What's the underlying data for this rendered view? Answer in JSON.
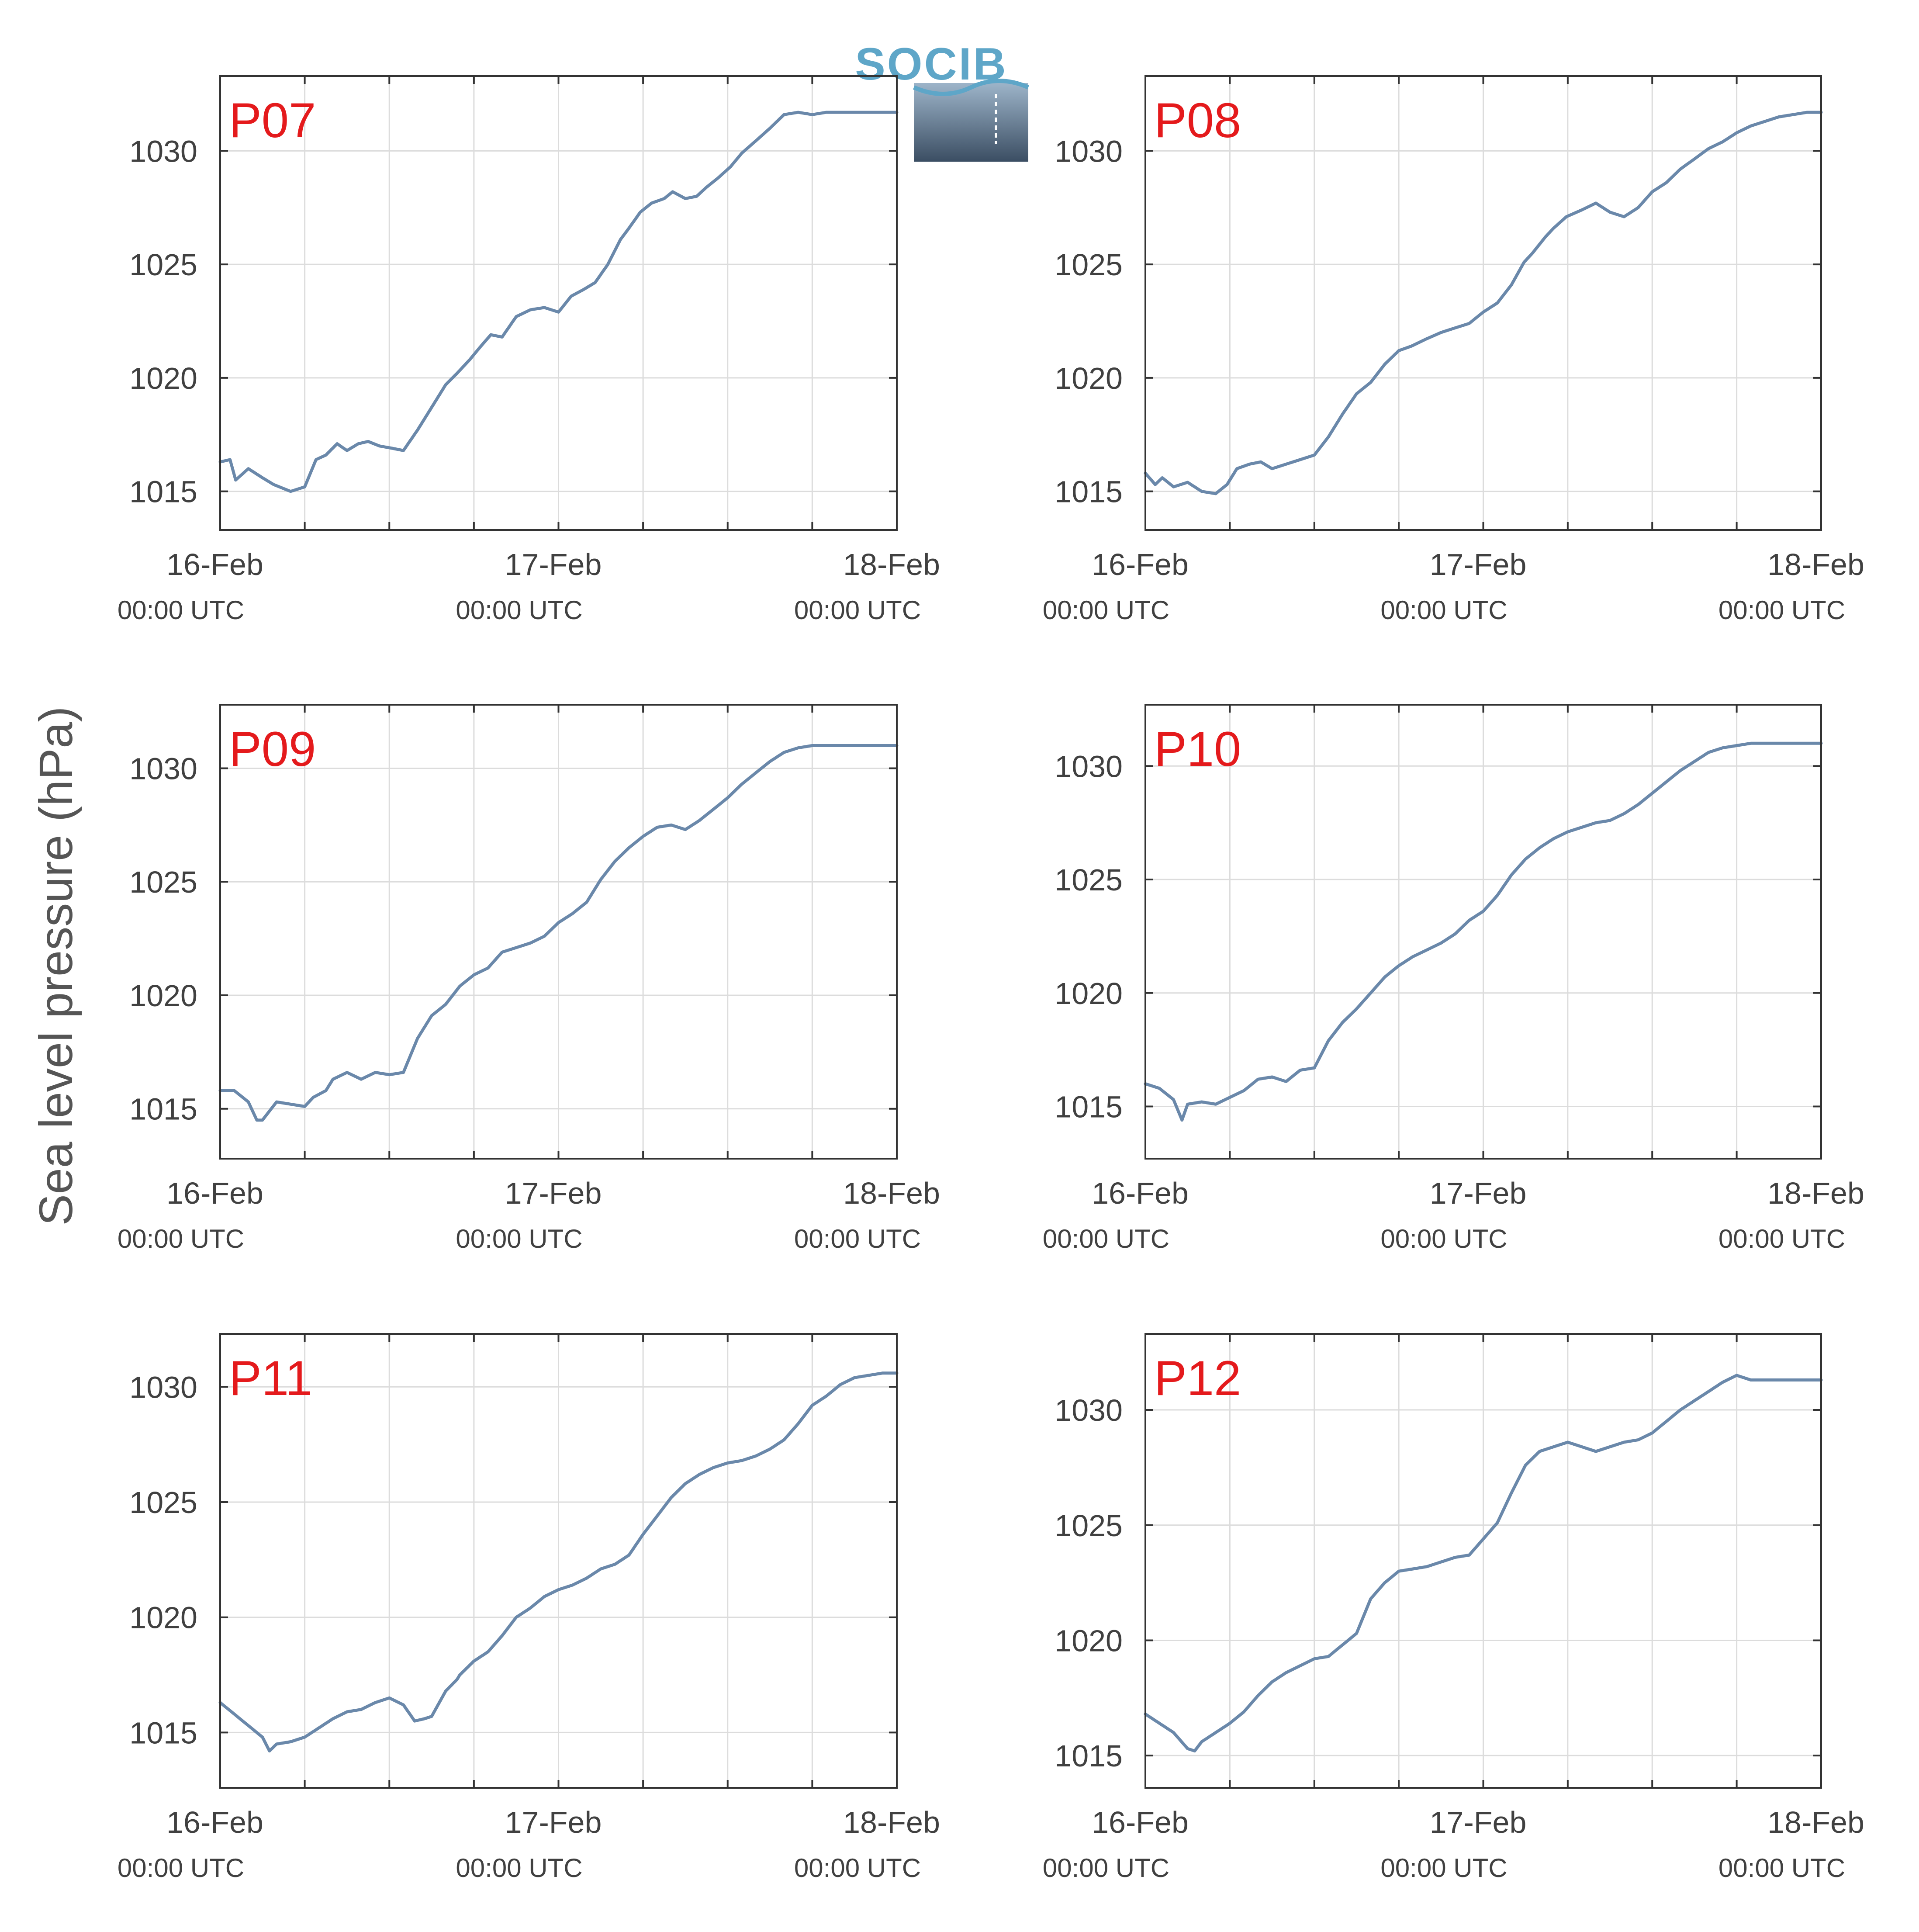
{
  "figure": {
    "ylabel": "Sea level pressure (hPa)",
    "series_color": "#6a88aa",
    "label_color": "#e41a1c",
    "logo": {
      "text": "SOCIB",
      "color": "#5ea6c8",
      "gradient_top": "#9db4c9",
      "gradient_bottom": "#3b4e63"
    }
  },
  "chart_data": [
    {
      "type": "line",
      "panel_label": "P07",
      "x_range_hours": [
        0,
        48
      ],
      "x_ticks": [
        {
          "date": "16-Feb",
          "time": "00:00 UTC"
        },
        {
          "date": "17-Feb",
          "time": "00:00 UTC"
        },
        {
          "date": "18-Feb",
          "time": "00:00 UTC"
        }
      ],
      "ylim": [
        1013.3,
        1033.3
      ],
      "yticks": [
        1015,
        1020,
        1025,
        1030
      ],
      "grid": true,
      "xlabel": "",
      "ylabel": "",
      "series": [
        {
          "x": [
            0,
            0.7,
            1.1,
            2,
            3,
            3.8,
            5,
            6,
            6.8,
            7.5,
            8.3,
            9,
            9.8,
            10.5,
            11.3,
            12.2,
            13,
            14,
            15.2,
            16,
            16.8,
            17.7,
            18.5,
            19.2,
            20,
            21,
            22,
            23,
            24,
            24.9,
            25.8,
            26.6,
            27.5,
            28.4,
            29,
            29.8,
            30.6,
            31.5,
            32.1,
            33,
            33.8,
            34.5,
            35.3,
            36.2,
            37,
            38.1,
            39,
            40,
            41,
            42,
            43,
            44,
            45,
            46,
            46.8,
            48
          ],
          "y": [
            1016.3,
            1016.4,
            1015.5,
            1016,
            1015.6,
            1015.3,
            1015,
            1015.2,
            1016.4,
            1016.6,
            1017.1,
            1016.8,
            1017.1,
            1017.2,
            1017,
            1016.9,
            1016.8,
            1017.7,
            1018.9,
            1019.7,
            1020.2,
            1020.8,
            1021.4,
            1021.9,
            1021.8,
            1022.7,
            1023,
            1023.1,
            1022.9,
            1023.6,
            1023.9,
            1024.2,
            1025,
            1026.1,
            1026.6,
            1027.3,
            1027.7,
            1027.9,
            1028.2,
            1027.9,
            1028,
            1028.4,
            1028.8,
            1029.3,
            1029.9,
            1030.5,
            1031,
            1031.6,
            1031.7,
            1031.6,
            1031.7,
            1031.7,
            1031.7,
            1031.7,
            1031.7,
            1031.7
          ]
        }
      ]
    },
    {
      "type": "line",
      "panel_label": "P08",
      "x_range_hours": [
        0,
        48
      ],
      "x_ticks": [
        {
          "date": "16-Feb",
          "time": "00:00 UTC"
        },
        {
          "date": "17-Feb",
          "time": "00:00 UTC"
        },
        {
          "date": "18-Feb",
          "time": "00:00 UTC"
        }
      ],
      "ylim": [
        1013.3,
        1033.3
      ],
      "yticks": [
        1015,
        1020,
        1025,
        1030
      ],
      "grid": true,
      "xlabel": "",
      "ylabel": "",
      "series": [
        {
          "x": [
            0,
            0.7,
            1.2,
            2,
            3,
            4,
            5,
            5.8,
            6.5,
            7.4,
            8.2,
            9,
            10,
            11,
            12,
            13,
            14,
            15,
            16,
            17,
            18,
            18.9,
            19.9,
            21,
            22,
            23,
            24,
            25,
            26,
            26.9,
            27.5,
            28.4,
            29,
            29.9,
            31,
            32,
            33,
            34,
            35,
            36,
            37,
            38,
            38.9,
            40,
            41,
            42,
            43,
            44,
            45,
            46,
            47,
            48
          ],
          "y": [
            1015.8,
            1015.3,
            1015.6,
            1015.2,
            1015.4,
            1015,
            1014.9,
            1015.3,
            1016,
            1016.2,
            1016.3,
            1016,
            1016.2,
            1016.4,
            1016.6,
            1017.4,
            1018.4,
            1019.3,
            1019.8,
            1020.6,
            1021.2,
            1021.4,
            1021.7,
            1022,
            1022.2,
            1022.4,
            1022.9,
            1023.3,
            1024.1,
            1025.1,
            1025.5,
            1026.2,
            1026.6,
            1027.1,
            1027.4,
            1027.7,
            1027.3,
            1027.1,
            1027.5,
            1028.2,
            1028.6,
            1029.2,
            1029.6,
            1030.1,
            1030.4,
            1030.8,
            1031.1,
            1031.3,
            1031.5,
            1031.6,
            1031.7,
            1031.7
          ]
        }
      ]
    },
    {
      "type": "line",
      "panel_label": "P09",
      "x_range_hours": [
        0,
        48
      ],
      "x_ticks": [
        {
          "date": "16-Feb",
          "time": "00:00 UTC"
        },
        {
          "date": "17-Feb",
          "time": "00:00 UTC"
        },
        {
          "date": "18-Feb",
          "time": "00:00 UTC"
        }
      ],
      "ylim": [
        1012.8,
        1032.8
      ],
      "yticks": [
        1015,
        1020,
        1025,
        1030
      ],
      "grid": true,
      "xlabel": "",
      "ylabel": "",
      "series": [
        {
          "x": [
            0,
            1,
            2,
            2.6,
            3,
            4,
            5,
            6,
            6.6,
            7.5,
            8,
            9,
            10,
            11,
            12,
            13,
            14,
            15,
            16,
            17,
            18,
            19,
            20,
            21,
            22,
            23,
            24,
            25,
            26,
            27,
            28,
            29,
            30,
            31,
            32,
            33,
            34,
            35,
            36,
            37,
            38,
            39,
            40,
            41,
            42,
            43,
            44,
            45,
            46,
            47,
            48
          ],
          "y": [
            1015.8,
            1015.8,
            1015.3,
            1014.5,
            1014.5,
            1015.3,
            1015.2,
            1015.1,
            1015.5,
            1015.8,
            1016.3,
            1016.6,
            1016.3,
            1016.6,
            1016.5,
            1016.6,
            1018.1,
            1019.1,
            1019.6,
            1020.4,
            1020.9,
            1021.2,
            1021.9,
            1022.1,
            1022.3,
            1022.6,
            1023.2,
            1023.6,
            1024.1,
            1025.1,
            1025.9,
            1026.5,
            1027,
            1027.4,
            1027.5,
            1027.3,
            1027.7,
            1028.2,
            1028.7,
            1029.3,
            1029.8,
            1030.3,
            1030.7,
            1030.9,
            1031,
            1031,
            1031,
            1031,
            1031,
            1031,
            1031
          ]
        }
      ]
    },
    {
      "type": "line",
      "panel_label": "P10",
      "x_range_hours": [
        0,
        48
      ],
      "x_ticks": [
        {
          "date": "16-Feb",
          "time": "00:00 UTC"
        },
        {
          "date": "17-Feb",
          "time": "00:00 UTC"
        },
        {
          "date": "18-Feb",
          "time": "00:00 UTC"
        }
      ],
      "ylim": [
        1012.7,
        1032.7
      ],
      "yticks": [
        1015,
        1020,
        1025,
        1030
      ],
      "grid": true,
      "xlabel": "",
      "ylabel": "",
      "series": [
        {
          "x": [
            0,
            1,
            2,
            2.6,
            3,
            4,
            5,
            6,
            7,
            8,
            9,
            10,
            11,
            12,
            13,
            14,
            15,
            16,
            17,
            18,
            19,
            20,
            21,
            22,
            23,
            24,
            25,
            26,
            27,
            28,
            29,
            30,
            31,
            32,
            33,
            34,
            35,
            36,
            37,
            38,
            39,
            40,
            41,
            42,
            43,
            44,
            45,
            46,
            47,
            48
          ],
          "y": [
            1016,
            1015.8,
            1015.3,
            1014.4,
            1015.1,
            1015.2,
            1015.1,
            1015.4,
            1015.7,
            1016.2,
            1016.3,
            1016.1,
            1016.6,
            1016.7,
            1017.9,
            1018.7,
            1019.3,
            1020,
            1020.7,
            1021.2,
            1021.6,
            1021.9,
            1022.2,
            1022.6,
            1023.2,
            1023.6,
            1024.3,
            1025.2,
            1025.9,
            1026.4,
            1026.8,
            1027.1,
            1027.3,
            1027.5,
            1027.6,
            1027.9,
            1028.3,
            1028.8,
            1029.3,
            1029.8,
            1030.2,
            1030.6,
            1030.8,
            1030.9,
            1031,
            1031,
            1031,
            1031,
            1031,
            1031
          ]
        }
      ]
    },
    {
      "type": "line",
      "panel_label": "P11",
      "x_range_hours": [
        0,
        48
      ],
      "x_ticks": [
        {
          "date": "16-Feb",
          "time": "00:00 UTC"
        },
        {
          "date": "17-Feb",
          "time": "00:00 UTC"
        },
        {
          "date": "18-Feb",
          "time": "00:00 UTC"
        }
      ],
      "ylim": [
        1012.6,
        1032.3
      ],
      "yticks": [
        1015,
        1020,
        1025,
        1030
      ],
      "grid": true,
      "xlabel": "",
      "ylabel": "",
      "series": [
        {
          "x": [
            0,
            1,
            2,
            3,
            3.5,
            4,
            5,
            6,
            7,
            8,
            9,
            10,
            11,
            12,
            13,
            13.8,
            14.5,
            15,
            16,
            16.8,
            17,
            18,
            19,
            20,
            21,
            22,
            23,
            24,
            25,
            26,
            27,
            28,
            29,
            30,
            31,
            32,
            33,
            34,
            35,
            36,
            37,
            38,
            39,
            40,
            41,
            42,
            43,
            44,
            45,
            46,
            47,
            48
          ],
          "y": [
            1016.3,
            1015.8,
            1015.3,
            1014.8,
            1014.2,
            1014.5,
            1014.6,
            1014.8,
            1015.2,
            1015.6,
            1015.9,
            1016,
            1016.3,
            1016.5,
            1016.2,
            1015.5,
            1015.6,
            1015.7,
            1016.8,
            1017.3,
            1017.5,
            1018.1,
            1018.5,
            1019.2,
            1020,
            1020.4,
            1020.9,
            1021.2,
            1021.4,
            1021.7,
            1022.1,
            1022.3,
            1022.7,
            1023.6,
            1024.4,
            1025.2,
            1025.8,
            1026.2,
            1026.5,
            1026.7,
            1026.8,
            1027,
            1027.3,
            1027.7,
            1028.4,
            1029.2,
            1029.6,
            1030.1,
            1030.4,
            1030.5,
            1030.6,
            1030.6
          ]
        }
      ]
    },
    {
      "type": "line",
      "panel_label": "P12",
      "x_range_hours": [
        0,
        48
      ],
      "x_ticks": [
        {
          "date": "16-Feb",
          "time": "00:00 UTC"
        },
        {
          "date": "17-Feb",
          "time": "00:00 UTC"
        },
        {
          "date": "18-Feb",
          "time": "00:00 UTC"
        }
      ],
      "ylim": [
        1013.6,
        1033.3
      ],
      "yticks": [
        1015,
        1020,
        1025,
        1030
      ],
      "grid": true,
      "xlabel": "",
      "ylabel": "",
      "series": [
        {
          "x": [
            0,
            1,
            2,
            3,
            3.5,
            4,
            5,
            6,
            7,
            8,
            9,
            10,
            11,
            12,
            13,
            14,
            15,
            16,
            17,
            18,
            19,
            20,
            21,
            22,
            23,
            24,
            25,
            26,
            27,
            28,
            29,
            30,
            31,
            32,
            33,
            34,
            35,
            36,
            37,
            38,
            39,
            40,
            41,
            42,
            43,
            44,
            45,
            46,
            47,
            48
          ],
          "y": [
            1016.8,
            1016.4,
            1016,
            1015.3,
            1015.2,
            1015.6,
            1016,
            1016.4,
            1016.9,
            1017.6,
            1018.2,
            1018.6,
            1018.9,
            1019.2,
            1019.3,
            1019.8,
            1020.3,
            1021.8,
            1022.5,
            1023,
            1023.1,
            1023.2,
            1023.4,
            1023.6,
            1023.7,
            1024.4,
            1025.1,
            1026.4,
            1027.6,
            1028.2,
            1028.4,
            1028.6,
            1028.4,
            1028.2,
            1028.4,
            1028.6,
            1028.7,
            1029,
            1029.5,
            1030,
            1030.4,
            1030.8,
            1031.2,
            1031.5,
            1031.3,
            1031.3,
            1031.3,
            1031.3,
            1031.3,
            1031.3
          ]
        }
      ]
    }
  ]
}
